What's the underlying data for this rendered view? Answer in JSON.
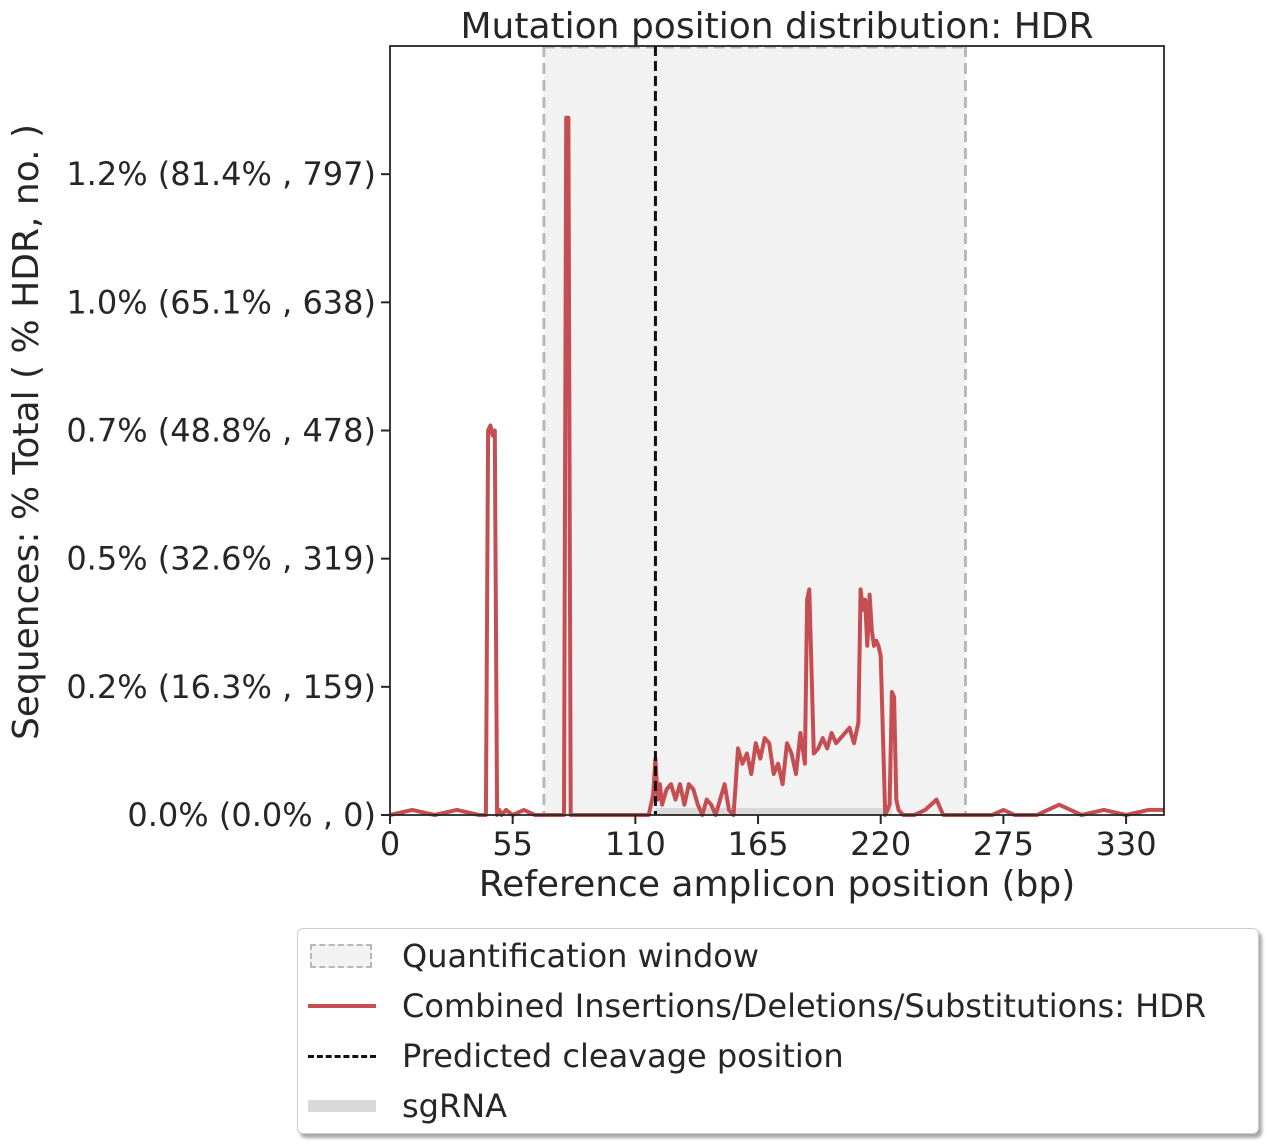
{
  "chart_data": {
    "type": "line",
    "title": "Mutation position distribution: HDR",
    "xlabel": "Reference amplicon position (bp)",
    "ylabel": "Sequences: % Total ( % HDR, no. )",
    "xlim": [
      0,
      347
    ],
    "ylim": [
      0,
      1.5
    ],
    "x_ticks": [
      0,
      55,
      110,
      165,
      220,
      275,
      330
    ],
    "y_ticks": [
      {
        "value": 0.0,
        "label": "0.0% (0.0% , 0)"
      },
      {
        "value": 0.25,
        "label": "0.2% (16.3% , 159)"
      },
      {
        "value": 0.5,
        "label": "0.5% (32.6% , 319)"
      },
      {
        "value": 0.75,
        "label": "0.7% (48.8% , 478)"
      },
      {
        "value": 1.0,
        "label": "1.0% (65.1% , 638)"
      },
      {
        "value": 1.25,
        "label": "1.2% (81.4% , 797)"
      }
    ],
    "quantification_window": [
      69,
      258
    ],
    "cleavage_position": 119,
    "sgrna_range": [
      119,
      225
    ],
    "series": [
      {
        "name": "Combined Insertions/Deletions/Substitutions: HDR",
        "color": "#c44e52",
        "x": [
          0,
          10,
          20,
          30,
          40,
          43,
          44,
          45,
          46,
          47,
          48,
          49,
          50,
          52,
          55,
          60,
          65,
          70,
          78,
          79,
          80,
          81,
          82,
          90,
          100,
          110,
          116,
          118,
          119,
          120,
          121,
          122,
          124,
          126,
          128,
          130,
          132,
          134,
          136,
          138,
          140,
          142,
          144,
          146,
          148,
          150,
          152,
          154,
          155,
          156,
          158,
          160,
          162,
          164,
          166,
          168,
          170,
          172,
          174,
          176,
          178,
          180,
          182,
          184,
          186,
          187,
          188,
          190,
          192,
          194,
          196,
          198,
          200,
          202,
          204,
          206,
          208,
          210,
          211,
          212,
          213,
          214,
          215,
          216,
          217,
          218,
          219,
          220,
          222,
          224,
          225,
          226,
          227,
          228,
          230,
          235,
          240,
          245,
          246,
          248,
          250,
          260,
          270,
          275,
          280,
          290,
          300,
          310,
          320,
          330,
          340,
          347
        ],
        "y": [
          0.0,
          0.01,
          0.0,
          0.01,
          0.0,
          0.0,
          0.75,
          0.76,
          0.74,
          0.75,
          0.0,
          0.01,
          0.0,
          0.01,
          0.0,
          0.01,
          0.0,
          0.0,
          0.0,
          1.36,
          1.36,
          0.0,
          0.0,
          0.0,
          0.0,
          0.0,
          0.0,
          0.04,
          0.11,
          0.03,
          0.06,
          0.02,
          0.05,
          0.06,
          0.03,
          0.06,
          0.02,
          0.06,
          0.05,
          0.02,
          0.0,
          0.03,
          0.02,
          0.0,
          0.03,
          0.06,
          0.01,
          0.0,
          0.06,
          0.13,
          0.1,
          0.12,
          0.08,
          0.14,
          0.11,
          0.15,
          0.14,
          0.08,
          0.1,
          0.06,
          0.14,
          0.12,
          0.08,
          0.16,
          0.1,
          0.42,
          0.44,
          0.12,
          0.13,
          0.15,
          0.13,
          0.16,
          0.14,
          0.15,
          0.16,
          0.17,
          0.14,
          0.18,
          0.44,
          0.4,
          0.42,
          0.33,
          0.43,
          0.36,
          0.33,
          0.34,
          0.33,
          0.31,
          0.0,
          0.02,
          0.24,
          0.23,
          0.03,
          0.01,
          0.0,
          0.0,
          0.01,
          0.03,
          0.02,
          0.0,
          0.0,
          0.0,
          0.0,
          0.01,
          0.0,
          0.0,
          0.02,
          0.0,
          0.01,
          0.0,
          0.01,
          0.01
        ]
      }
    ],
    "legend": [
      {
        "key": "window",
        "label": "Quantification window"
      },
      {
        "key": "line",
        "label": "Combined Insertions/Deletions/Substitutions: HDR"
      },
      {
        "key": "cleavage",
        "label": "Predicted cleavage position"
      },
      {
        "key": "sgrna",
        "label": "sgRNA"
      }
    ],
    "legend_placement": "bottom",
    "grid": false,
    "colors": {
      "line": "#c44e52",
      "window_fill": "#f2f2f2",
      "window_border": "#b9b9b9",
      "cleavage": "#111111",
      "sgrna": "#d9d9d9",
      "axis": "#262626"
    }
  }
}
